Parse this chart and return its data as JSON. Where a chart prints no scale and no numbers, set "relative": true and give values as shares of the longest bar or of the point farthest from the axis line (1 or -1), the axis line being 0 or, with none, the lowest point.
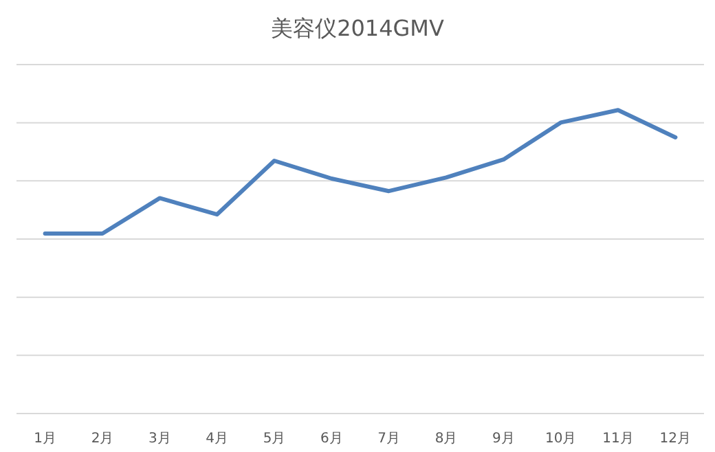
{
  "chart_data": {
    "type": "line",
    "title": "美容仪2014GMV",
    "categories": [
      "1月",
      "2月",
      "3月",
      "4月",
      "5月",
      "6月",
      "7月",
      "8月",
      "9月",
      "10月",
      "11月",
      "12月"
    ],
    "values": [
      0.593,
      0.593,
      0.71,
      0.656,
      0.833,
      0.774,
      0.733,
      0.778,
      0.837,
      0.959,
      1,
      0.91
    ],
    "color": "#4f81bd",
    "relative": true,
    "grid": "y"
  }
}
